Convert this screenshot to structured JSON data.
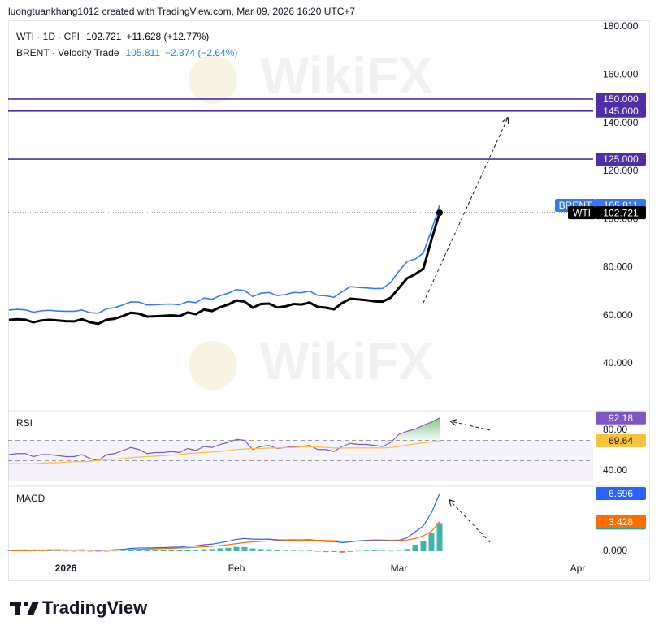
{
  "header": "luongtuankhang1012 created with TradingView.com, Mar 09, 2026 16:20 UTC+7",
  "watermark": "WikiFX",
  "footer": "TradingView",
  "chart_data": [
    {
      "type": "line",
      "categories": [
        null,
        null,
        null,
        null,
        null,
        null,
        null,
        "2026",
        null,
        null,
        null,
        null,
        null,
        null,
        null,
        null,
        null,
        null,
        null,
        null,
        null,
        null,
        null,
        null,
        null,
        null,
        null,
        null,
        "Feb",
        null,
        null,
        null,
        null,
        null,
        null,
        null,
        null,
        null,
        null,
        null,
        null,
        null,
        null,
        null,
        null,
        null,
        null,
        null,
        "Mar",
        null,
        null,
        null,
        null,
        null,
        null,
        null,
        null,
        null,
        null,
        null,
        null,
        null,
        null,
        null,
        null,
        null,
        null,
        null,
        null,
        null,
        "Apr",
        null
      ],
      "ylim": [
        20.8,
        182.7
      ],
      "yticks": [
        {
          "value": 40,
          "label": "40.000"
        },
        {
          "value": 60,
          "label": "60.000"
        },
        {
          "value": 80,
          "label": "80.000"
        },
        {
          "value": 100,
          "label": "100.000"
        },
        {
          "value": 120,
          "label": "120.000"
        },
        {
          "value": 140,
          "label": "140.000"
        },
        {
          "value": 160,
          "label": "160.000"
        },
        {
          "value": 180,
          "label": "180.000"
        }
      ],
      "levels": [
        {
          "value": 150,
          "label": "150.000"
        },
        {
          "value": 145,
          "label": "145.000"
        },
        {
          "value": 125,
          "label": "125.000"
        }
      ],
      "level_color": "#512da8",
      "series": [
        {
          "name": "BRENT · Velocity Trade",
          "tag": "BRENT",
          "change": "−2.874 (−2.64%)",
          "color": "#3179f5",
          "width": 1.6,
          "values": [
            62.3,
            62.6,
            62.4,
            61.4,
            62.0,
            62.2,
            61.9,
            61.8,
            61.8,
            62.3,
            61.2,
            61.0,
            62.8,
            63.3,
            64.4,
            65.7,
            65.6,
            64.4,
            64.5,
            64.7,
            64.8,
            64.5,
            65.8,
            65.4,
            67.3,
            66.8,
            68.3,
            69.3,
            70.8,
            70.4,
            67.9,
            69.3,
            69.6,
            68.3,
            68.7,
            69.6,
            69.5,
            70.2,
            68.4,
            68.2,
            67.6,
            69.9,
            72.0,
            71.7,
            71.5,
            71.2,
            71.3,
            73.8,
            78.5,
            82.5,
            83.5,
            86.0,
            95.5,
            105.811,
            null,
            null,
            null,
            null,
            null,
            null,
            null,
            null,
            null,
            null,
            null,
            null,
            null,
            null,
            null,
            null,
            null,
            null
          ]
        },
        {
          "name": "WTI · 1D · CFI",
          "tag": "WTI",
          "change": "+11.628 (+12.77%)",
          "color": "#000000",
          "width": 3,
          "price_line": true,
          "end_dot": true,
          "values": [
            58.2,
            58.5,
            58.3,
            57.2,
            58.0,
            58.3,
            58.0,
            57.7,
            57.6,
            58.5,
            57.2,
            56.6,
            58.3,
            58.7,
            59.8,
            61.2,
            60.8,
            59.6,
            59.7,
            59.9,
            60.1,
            59.8,
            61.3,
            60.6,
            62.5,
            61.9,
            63.5,
            64.6,
            66.3,
            65.8,
            63.3,
            64.8,
            65.0,
            63.4,
            63.8,
            64.8,
            64.6,
            65.4,
            63.6,
            63.3,
            62.6,
            65.2,
            67.0,
            66.7,
            66.4,
            65.9,
            65.8,
            67.5,
            71.5,
            75.5,
            77.2,
            79.5,
            91.5,
            102.721,
            null,
            null,
            null,
            null,
            null,
            null,
            null,
            null,
            null,
            null,
            null,
            null,
            null,
            null,
            null,
            null,
            null,
            null
          ]
        }
      ]
    },
    {
      "type": "line",
      "title": "RSI",
      "ylim": [
        26.4,
        98.4
      ],
      "yticks": [
        {
          "value": 40,
          "label": "40.00"
        },
        {
          "value": 80,
          "label": "80.00"
        }
      ],
      "bands": [
        70,
        50,
        30
      ],
      "overbought_fill": true,
      "series": [
        {
          "color": "#7e57c2",
          "width": 1.2,
          "values": [
            56,
            57,
            57,
            54,
            56,
            56,
            55,
            54,
            54,
            56,
            52,
            50,
            56,
            57,
            60,
            63,
            61,
            57,
            58,
            58,
            59,
            58,
            62,
            60,
            64,
            63,
            66,
            68,
            71,
            70,
            61,
            64,
            65,
            62,
            63,
            64,
            64,
            65,
            61,
            61,
            59,
            64,
            67,
            66,
            66,
            65,
            64,
            68,
            76,
            79,
            81,
            85,
            88,
            92.18,
            null,
            null,
            null,
            null,
            null,
            null,
            null,
            null,
            null,
            null,
            null,
            null,
            null,
            null,
            null,
            null,
            null,
            null
          ]
        },
        {
          "color": "#f7c33c",
          "width": 1.2,
          "tag_text": "#131722",
          "values": [
            47,
            47,
            47,
            47,
            47.5,
            48,
            48,
            48.5,
            49,
            49,
            49.5,
            50,
            51,
            51.5,
            52,
            53,
            53.5,
            54,
            54.5,
            55,
            55.5,
            56,
            57,
            57.5,
            58,
            58.5,
            59,
            60,
            61,
            61.5,
            62,
            62,
            62.5,
            62.5,
            63,
            63,
            63.5,
            63.5,
            63.5,
            63,
            62.5,
            62.5,
            62.5,
            62.5,
            62.5,
            62.5,
            62.5,
            63,
            64,
            65.5,
            66.5,
            67.5,
            68.5,
            69.64,
            null,
            null,
            null,
            null,
            null,
            null,
            null,
            null,
            null,
            null,
            null,
            null,
            null,
            null,
            null,
            null,
            null,
            null
          ]
        }
      ]
    },
    {
      "type": "line",
      "title": "MACD",
      "ylim": [
        -1.04,
        7.45
      ],
      "yticks": [
        {
          "value": 0,
          "label": "0.000"
        }
      ],
      "series": [
        {
          "kind": "histogram",
          "color": "#26a69a",
          "negative_color": "#ef5350",
          "values": [
            0.05,
            0.06,
            0.07,
            0.04,
            0.04,
            0.05,
            0.04,
            0.02,
            0.01,
            0.02,
            -0.01,
            -0.04,
            0.0,
            0.03,
            0.07,
            0.14,
            0.16,
            0.13,
            0.12,
            0.11,
            0.12,
            0.11,
            0.17,
            0.17,
            0.24,
            0.25,
            0.33,
            0.4,
            0.5,
            0.48,
            0.32,
            0.24,
            0.21,
            0.1,
            0.06,
            0.06,
            0.03,
            0.06,
            -0.05,
            -0.11,
            -0.1,
            -0.18,
            -0.08,
            0.03,
            0.07,
            0.09,
            0.06,
            0.03,
            0.04,
            0.25,
            0.76,
            1.17,
            2.14,
            3.268,
            null,
            null,
            null,
            null,
            null,
            null,
            null,
            null,
            null,
            null,
            null,
            null,
            null,
            null,
            null,
            null,
            null,
            null
          ]
        },
        {
          "color": "#2962ff",
          "width": 1.2,
          "values": [
            0.1,
            0.12,
            0.14,
            0.12,
            0.13,
            0.15,
            0.15,
            0.14,
            0.13,
            0.15,
            0.12,
            0.08,
            0.12,
            0.16,
            0.22,
            0.32,
            0.38,
            0.38,
            0.4,
            0.42,
            0.46,
            0.48,
            0.58,
            0.62,
            0.75,
            0.82,
            0.98,
            1.15,
            1.38,
            1.48,
            1.4,
            1.38,
            1.4,
            1.32,
            1.3,
            1.32,
            1.3,
            1.34,
            1.22,
            1.14,
            1.12,
            1.0,
            1.08,
            1.2,
            1.26,
            1.3,
            1.28,
            1.26,
            1.28,
            1.55,
            2.25,
            2.95,
            4.45,
            6.696,
            null,
            null,
            null,
            null,
            null,
            null,
            null,
            null,
            null,
            null,
            null,
            null,
            null,
            null,
            null,
            null,
            null,
            null
          ]
        },
        {
          "color": "#ff6d00",
          "width": 1.2,
          "values": [
            0.05,
            0.06,
            0.07,
            0.08,
            0.09,
            0.1,
            0.11,
            0.12,
            0.12,
            0.13,
            0.13,
            0.12,
            0.12,
            0.13,
            0.15,
            0.18,
            0.22,
            0.25,
            0.28,
            0.31,
            0.34,
            0.37,
            0.41,
            0.45,
            0.51,
            0.57,
            0.65,
            0.75,
            0.88,
            1.0,
            1.08,
            1.14,
            1.19,
            1.22,
            1.24,
            1.26,
            1.27,
            1.28,
            1.27,
            1.25,
            1.22,
            1.18,
            1.16,
            1.17,
            1.19,
            1.21,
            1.22,
            1.23,
            1.24,
            1.3,
            1.49,
            1.78,
            2.31,
            3.428,
            null,
            null,
            null,
            null,
            null,
            null,
            null,
            null,
            null,
            null,
            null,
            null,
            null,
            null,
            null,
            null,
            null,
            null
          ]
        }
      ]
    }
  ]
}
